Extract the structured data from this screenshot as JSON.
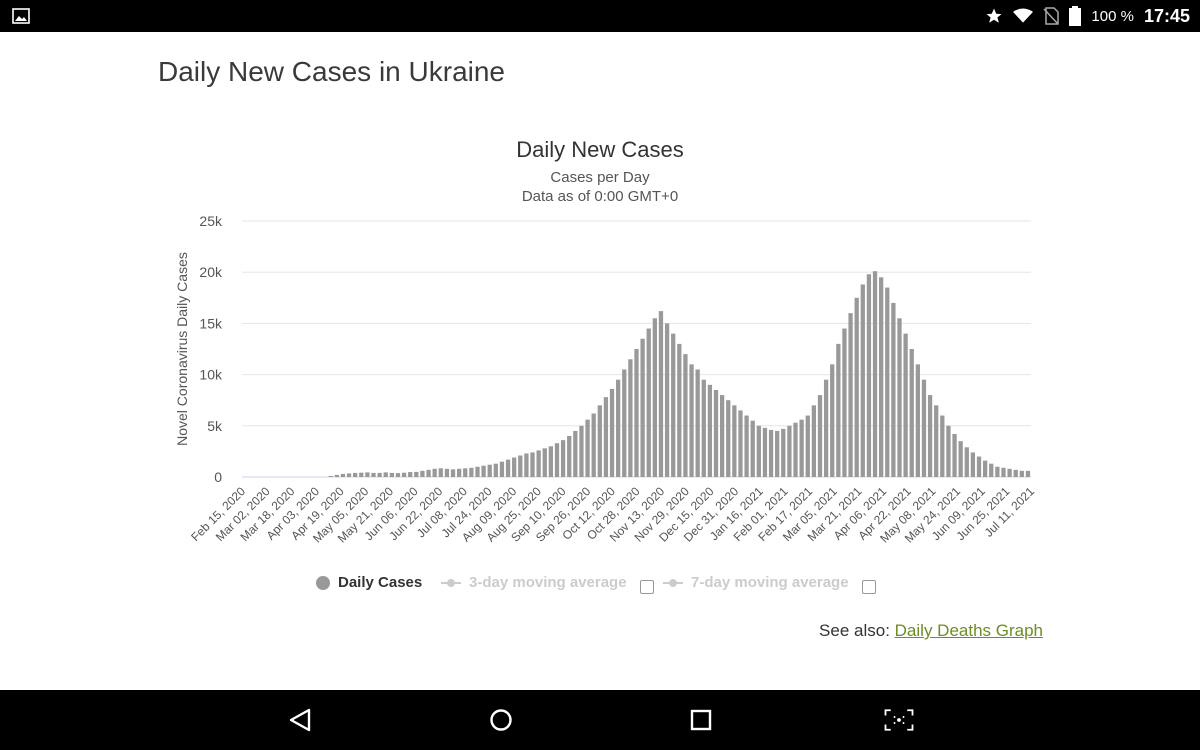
{
  "status_bar": {
    "battery_text": "100 %",
    "time": "17:45",
    "icons": [
      "gallery-icon",
      "star-icon",
      "wifi-icon",
      "no-sim-icon",
      "battery-icon"
    ]
  },
  "page": {
    "heading": "Daily New Cases in Ukraine",
    "see_also_prefix": "See also:",
    "see_also_link": "Daily Deaths Graph",
    "link_color": "#6b8e23"
  },
  "legend": {
    "items": [
      {
        "label": "Daily Cases",
        "active": true
      },
      {
        "label": "3-day moving average",
        "active": false
      },
      {
        "label": "7-day moving average",
        "active": false
      }
    ]
  },
  "nav_bar": {
    "icons": [
      "back-icon",
      "home-icon",
      "recents-icon",
      "screenshot-icon"
    ]
  },
  "chart_data": {
    "type": "bar",
    "title": "Daily New Cases",
    "subtitle": [
      "Cases per Day",
      "Data as of 0:00 GMT+0"
    ],
    "ylabel": "Novel Coronavirus Daily Cases",
    "xlabel": "",
    "ylim": [
      0,
      25000
    ],
    "yticks": [
      "0",
      "5k",
      "10k",
      "15k",
      "20k",
      "25k"
    ],
    "xticks": [
      "Feb 15, 2020",
      "Mar 02, 2020",
      "Mar 18, 2020",
      "Apr 03, 2020",
      "Apr 19, 2020",
      "May 05, 2020",
      "May 21, 2020",
      "Jun 06, 2020",
      "Jun 22, 2020",
      "Jul 08, 2020",
      "Jul 24, 2020",
      "Aug 09, 2020",
      "Aug 25, 2020",
      "Sep 10, 2020",
      "Sep 26, 2020",
      "Oct 12, 2020",
      "Oct 28, 2020",
      "Nov 13, 2020",
      "Nov 29, 2020",
      "Dec 15, 2020",
      "Dec 31, 2020",
      "Jan 16, 2021",
      "Feb 01, 2021",
      "Feb 17, 2021",
      "Mar 05, 2021",
      "Mar 21, 2021",
      "Apr 06, 2021",
      "Apr 22, 2021",
      "May 08, 2021",
      "May 24, 2021",
      "Jun 09, 2021",
      "Jun 25, 2021",
      "Jul 11, 2021"
    ],
    "grid": true,
    "bar_color": "#999999",
    "series": [
      {
        "name": "Daily Cases",
        "x_start": "Feb 15, 2020",
        "x_step_days": 4,
        "values": [
          0,
          0,
          0,
          0,
          0,
          0,
          0,
          0,
          0,
          0,
          0,
          0,
          0,
          0,
          100,
          200,
          300,
          350,
          400,
          420,
          450,
          400,
          400,
          450,
          400,
          380,
          420,
          480,
          500,
          600,
          700,
          800,
          850,
          800,
          750,
          800,
          850,
          900,
          1000,
          1100,
          1200,
          1300,
          1500,
          1700,
          1900,
          2100,
          2300,
          2400,
          2600,
          2800,
          3000,
          3300,
          3600,
          4000,
          4500,
          5000,
          5600,
          6200,
          7000,
          7800,
          8600,
          9500,
          10500,
          11500,
          12500,
          13500,
          14500,
          15500,
          16200,
          15000,
          14000,
          13000,
          12000,
          11000,
          10500,
          9500,
          9000,
          8500,
          8000,
          7500,
          7000,
          6500,
          6000,
          5500,
          5000,
          4800,
          4600,
          4500,
          4700,
          5000,
          5300,
          5600,
          6000,
          7000,
          8000,
          9500,
          11000,
          13000,
          14500,
          16000,
          17500,
          18800,
          19800,
          20100,
          19500,
          18500,
          17000,
          15500,
          14000,
          12500,
          11000,
          9500,
          8000,
          7000,
          6000,
          5000,
          4200,
          3500,
          2900,
          2400,
          2000,
          1600,
          1300,
          1000,
          900,
          800,
          700,
          600,
          600
        ]
      }
    ],
    "legend_position": "bottom"
  }
}
